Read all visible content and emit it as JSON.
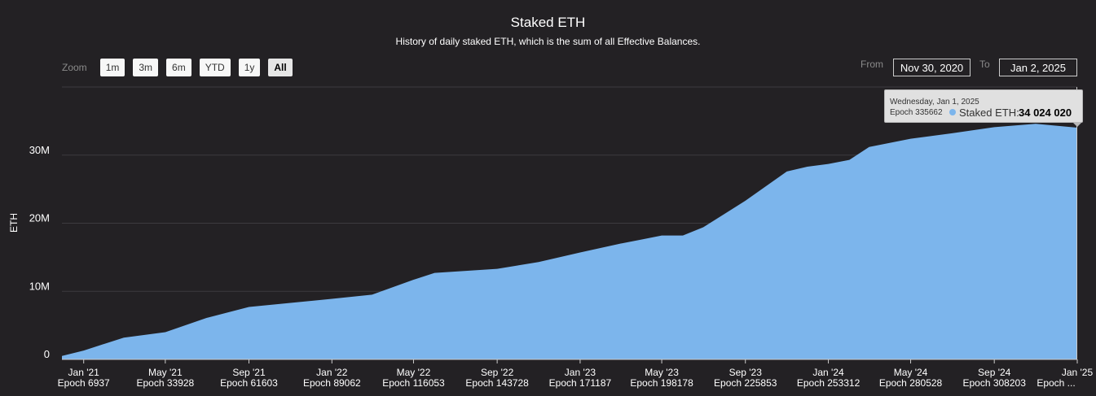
{
  "chart_data": {
    "type": "area",
    "title": "Staked ETH",
    "subtitle": "History of daily staked ETH, which is the sum of all Effective Balances.",
    "ylabel": "ETH",
    "y_ticks": [
      "0",
      "10M",
      "20M",
      "30M"
    ],
    "x_ticks": [
      {
        "date": "Jan '21",
        "epoch": "Epoch 6937"
      },
      {
        "date": "May '21",
        "epoch": "Epoch 33928"
      },
      {
        "date": "Sep '21",
        "epoch": "Epoch 61603"
      },
      {
        "date": "Jan '22",
        "epoch": "Epoch 89062"
      },
      {
        "date": "May '22",
        "epoch": "Epoch 116053"
      },
      {
        "date": "Sep '22",
        "epoch": "Epoch 143728"
      },
      {
        "date": "Jan '23",
        "epoch": "Epoch 171187"
      },
      {
        "date": "May '23",
        "epoch": "Epoch 198178"
      },
      {
        "date": "Sep '23",
        "epoch": "Epoch 225853"
      },
      {
        "date": "Jan '24",
        "epoch": "Epoch 253312"
      },
      {
        "date": "May '24",
        "epoch": "Epoch 280528"
      },
      {
        "date": "Sep '24",
        "epoch": "Epoch 308203"
      },
      {
        "date": "Jan '25",
        "epoch": "Epoch ..."
      }
    ],
    "ylim": [
      0,
      40000000
    ],
    "grid": true,
    "series_color": "#7cb5ec",
    "series": [
      {
        "name": "Staked ETH",
        "x": [
          "2020-11-30",
          "2021-01-01",
          "2021-03-01",
          "2021-05-01",
          "2021-07-01",
          "2021-09-01",
          "2021-11-01",
          "2022-01-01",
          "2022-03-01",
          "2022-05-01",
          "2022-06-01",
          "2022-09-01",
          "2022-11-01",
          "2023-01-01",
          "2023-03-01",
          "2023-04-01",
          "2023-05-01",
          "2023-06-01",
          "2023-07-01",
          "2023-09-01",
          "2023-11-01",
          "2023-12-01",
          "2024-01-01",
          "2024-02-01",
          "2024-03-01",
          "2024-05-01",
          "2024-07-01",
          "2024-09-01",
          "2024-11-01",
          "2025-01-01"
        ],
        "values": [
          500000,
          1300000,
          3200000,
          4000000,
          6100000,
          7700000,
          8300000,
          8900000,
          9500000,
          11700000,
          12700000,
          13300000,
          14300000,
          15700000,
          17000000,
          17600000,
          18200000,
          18200000,
          19400000,
          23300000,
          27600000,
          28300000,
          28700000,
          29300000,
          31200000,
          32400000,
          33200000,
          34100000,
          34600000,
          34024020
        ]
      }
    ],
    "tooltip": {
      "date": "Wednesday, Jan 1, 2025",
      "epoch": "Epoch 335662",
      "series": "Staked ETH:",
      "value": "34 024 020"
    }
  },
  "zoom": {
    "label": "Zoom",
    "buttons": [
      "1m",
      "3m",
      "6m",
      "YTD",
      "1y",
      "All"
    ],
    "active": "All"
  },
  "range": {
    "from_label": "From",
    "from_value": "Nov 30, 2020",
    "to_label": "To",
    "to_value": "Jan 2, 2025"
  }
}
